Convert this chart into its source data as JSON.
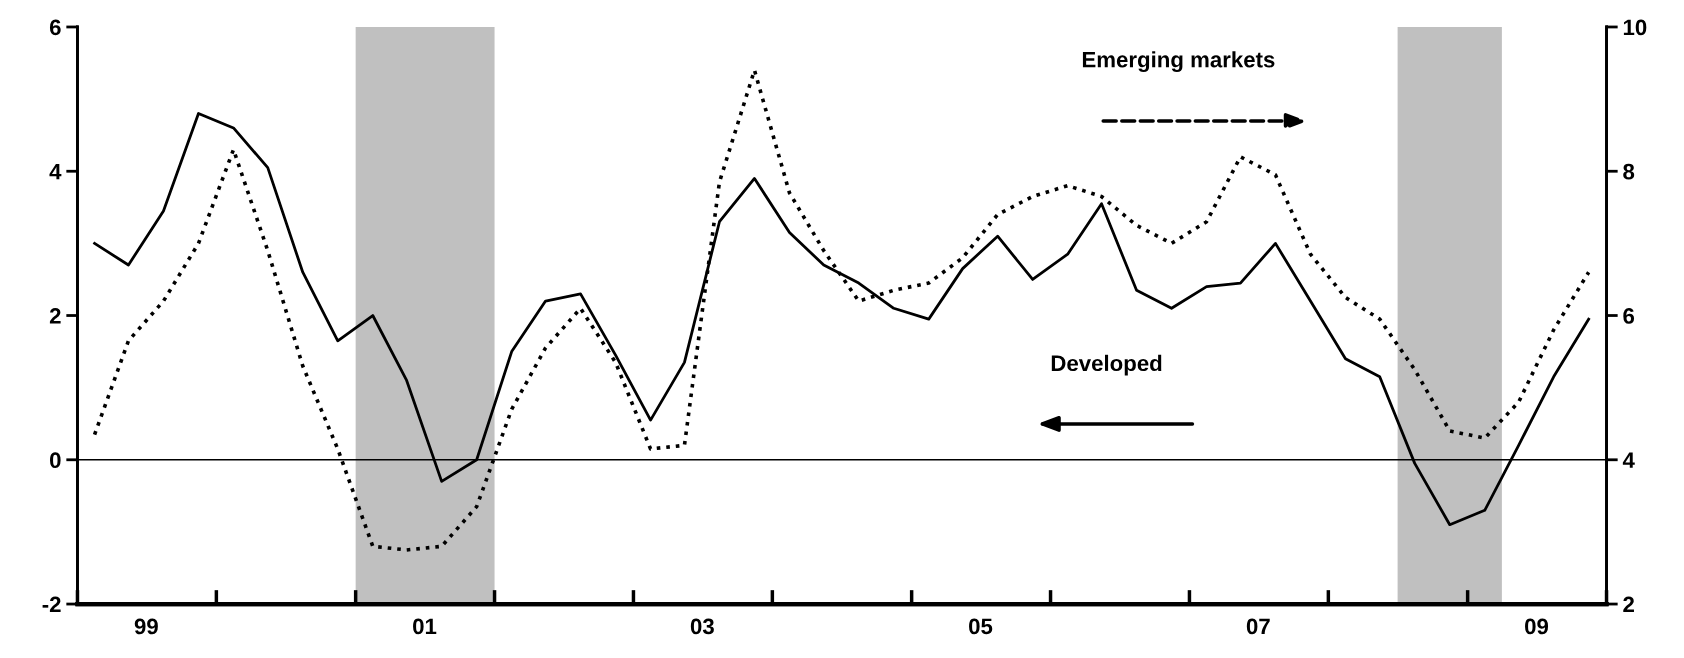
{
  "chart_data": {
    "type": "line",
    "x": [
      "1999-02-15",
      "1999-05-15",
      "1999-08-15",
      "1999-11-15",
      "2000-02-15",
      "2000-05-15",
      "2000-08-15",
      "2000-11-15",
      "2001-02-15",
      "2001-05-15",
      "2001-08-15",
      "2001-11-15",
      "2002-02-15",
      "2002-05-15",
      "2002-08-15",
      "2002-11-15",
      "2003-02-15",
      "2003-05-15",
      "2003-08-15",
      "2003-11-15",
      "2004-02-15",
      "2004-05-15",
      "2004-08-15",
      "2004-11-15",
      "2005-02-15",
      "2005-05-15",
      "2005-08-15",
      "2005-11-15",
      "2006-02-15",
      "2006-05-15",
      "2006-08-15",
      "2006-11-15",
      "2007-02-15",
      "2007-05-15",
      "2007-08-15",
      "2007-11-15",
      "2008-02-15",
      "2008-05-15",
      "2008-08-15",
      "2008-11-15",
      "2009-02-15",
      "2009-05-15",
      "2009-08-15",
      "2009-11-15"
    ],
    "series": [
      {
        "color": "#000000",
        "line_style": "solid",
        "values": [
          3.0,
          2.7,
          3.45,
          4.8,
          4.6,
          4.05,
          2.6,
          1.65,
          2.0,
          1.1,
          -0.3,
          0.0,
          1.5,
          2.2,
          2.3,
          1.45,
          0.55,
          1.35,
          3.3,
          3.9,
          3.15,
          2.7,
          2.45,
          2.1,
          1.95,
          2.65,
          3.1,
          2.5,
          2.85,
          3.55,
          2.35,
          2.1,
          2.4,
          2.45,
          3.0,
          2.2,
          1.4,
          1.15,
          -0.05,
          -0.9,
          -0.7,
          0.2,
          1.15,
          1.95
        ]
      },
      {
        "color": "#000000",
        "line_style": "dotted",
        "axis": "y2",
        "values": [
          4.35,
          5.65,
          6.2,
          7.0,
          8.3,
          6.9,
          5.3,
          4.15,
          2.8,
          2.75,
          2.8,
          3.35,
          4.7,
          5.55,
          6.1,
          5.35,
          4.15,
          4.2,
          7.85,
          9.4,
          7.7,
          6.9,
          6.2,
          6.35,
          6.45,
          6.8,
          7.4,
          7.65,
          7.8,
          7.65,
          7.25,
          7.0,
          7.3,
          8.2,
          7.95,
          6.85,
          6.25,
          5.95,
          5.25,
          4.4,
          4.3,
          4.8,
          5.8,
          6.6
        ]
      }
    ],
    "xlim": [
      "1999-01-01",
      "2010-01-01"
    ],
    "xticks": [
      {
        "value": "1999-01-01",
        "label": null
      },
      {
        "value": "1999-07-01",
        "label": "99"
      },
      {
        "value": "2000-01-01",
        "label": null
      },
      {
        "value": "2001-01-01",
        "label": null
      },
      {
        "value": "2001-07-01",
        "label": "01"
      },
      {
        "value": "2002-01-01",
        "label": null
      },
      {
        "value": "2003-01-01",
        "label": null
      },
      {
        "value": "2003-07-01",
        "label": "03"
      },
      {
        "value": "2004-01-01",
        "label": null
      },
      {
        "value": "2005-01-01",
        "label": null
      },
      {
        "value": "2005-07-01",
        "label": "05"
      },
      {
        "value": "2006-01-01",
        "label": null
      },
      {
        "value": "2007-01-01",
        "label": null
      },
      {
        "value": "2007-07-01",
        "label": "07"
      },
      {
        "value": "2008-01-01",
        "label": null
      },
      {
        "value": "2009-01-01",
        "label": null
      },
      {
        "value": "2009-07-01",
        "label": "09"
      },
      {
        "value": "2010-01-01",
        "label": null
      }
    ],
    "ylim": [
      -2,
      6
    ],
    "yticks": [
      -2,
      0,
      2,
      4,
      6
    ],
    "y2lim": [
      2,
      10
    ],
    "y2ticks": [
      2,
      4,
      6,
      8,
      10
    ],
    "ref_lines": [
      {
        "axis": "y",
        "value": 0,
        "color": "#000000"
      }
    ],
    "bands": [
      {
        "axis": "x",
        "from": "2001-01-01",
        "to": "2002-01-01",
        "color": "#c0c0c0"
      },
      {
        "axis": "x",
        "from": "2008-07-01",
        "to": "2009-04-01",
        "color": "#c0c0c0"
      }
    ],
    "annotations": [
      "Emerging markets",
      "Developed"
    ],
    "grid": false,
    "legend": false
  }
}
